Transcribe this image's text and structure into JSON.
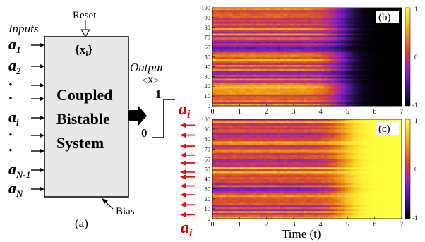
{
  "diagram": {
    "inputs_label": "Inputs",
    "reset_label": "Reset",
    "state_label": "{x",
    "state_sub": "i",
    "state_close": "}",
    "block_lines": [
      "Coupled",
      "Bistable",
      "System"
    ],
    "output_label": "Output",
    "output_symbol": "<X>",
    "level_high": "1",
    "level_low": "0",
    "bias_label": "Bias",
    "panel_label": "(a)",
    "inputs": [
      {
        "base": "a",
        "sub": "1"
      },
      {
        "base": "a",
        "sub": "2"
      },
      {
        "base": "·",
        "sub": ""
      },
      {
        "base": "·",
        "sub": ""
      },
      {
        "base": "a",
        "sub": "i"
      },
      {
        "base": "·",
        "sub": ""
      },
      {
        "base": "·",
        "sub": ""
      },
      {
        "base": "a",
        "sub": "N-1"
      },
      {
        "base": "a",
        "sub": "N"
      }
    ]
  },
  "heatmaps": {
    "x_label": "Time (t)",
    "y_var_base": "a",
    "y_var_sub": "i",
    "x_ticks": [
      "0",
      "1",
      "2",
      "3",
      "4",
      "5",
      "6",
      "7"
    ],
    "y_ticks": [
      "0",
      "10",
      "20",
      "30",
      "40",
      "50",
      "60",
      "70",
      "80",
      "90",
      "100"
    ],
    "colorbar_ticks": [
      "1",
      "0",
      "-1"
    ],
    "panels": [
      {
        "label": "(b)"
      },
      {
        "label": "(c)"
      }
    ]
  },
  "colors": {
    "block_fill": "#e8e8e8",
    "arrow_red": "#e01010",
    "label_red": "#cc0000",
    "cmap": [
      "#000000",
      "#3a1670",
      "#7a1ec8",
      "#b42a8c",
      "#d24a30",
      "#e8801a",
      "#f5c020",
      "#ffff40"
    ]
  },
  "chart_data": [
    {
      "type": "heatmap",
      "title": "(b)",
      "xlabel": "",
      "ylabel": "a_i",
      "xlim": [
        0,
        7
      ],
      "ylim": [
        0,
        100
      ],
      "zlim": [
        -1,
        1
      ],
      "x": [
        0,
        1,
        2,
        3,
        4,
        5,
        6,
        7
      ],
      "row_mean_before_switch": [
        0.3,
        0.0,
        0.4,
        -0.1,
        0.2,
        0.5,
        -0.2,
        0.1,
        0.3,
        0.0,
        0.4
      ],
      "switch_time": 4.7,
      "final_state": -1
    },
    {
      "type": "heatmap",
      "title": "(c)",
      "xlabel": "Time (t)",
      "ylabel": "a_i",
      "xlim": [
        0,
        7
      ],
      "ylim": [
        0,
        100
      ],
      "zlim": [
        -1,
        1
      ],
      "x": [
        0,
        1,
        2,
        3,
        4,
        5,
        6,
        7
      ],
      "row_mean_before_switch": [
        0.3,
        0.0,
        0.4,
        -0.1,
        0.2,
        0.5,
        -0.2,
        0.1,
        0.3,
        0.0,
        0.4
      ],
      "switch_time": 4.8,
      "final_state": 1,
      "arrow_rows": [
        4,
        14,
        24,
        33,
        42,
        47,
        56,
        64,
        73,
        84,
        94
      ]
    }
  ]
}
